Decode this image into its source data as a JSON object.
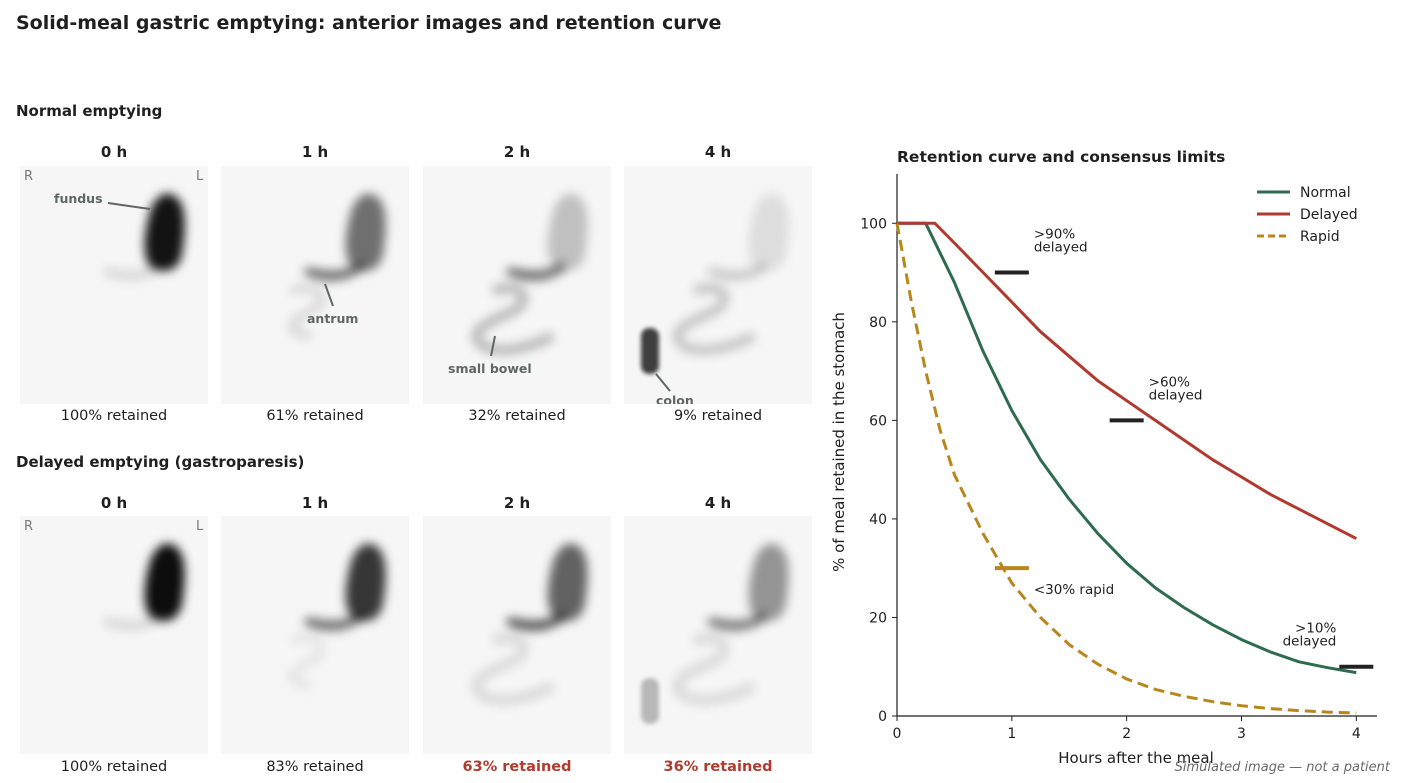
{
  "title": "Solid-meal gastric emptying: anterior images and retention curve",
  "footnote": "Simulated image — not a patient",
  "orientation": {
    "right": "R",
    "left": "L"
  },
  "rows": [
    {
      "title": "Normal emptying",
      "panels": [
        {
          "label": "0 h",
          "caption": "100% retained",
          "highlight": false,
          "retained": 100
        },
        {
          "label": "1 h",
          "caption": "61% retained",
          "highlight": false,
          "retained": 61
        },
        {
          "label": "2 h",
          "caption": "32% retained",
          "highlight": false,
          "retained": 32
        },
        {
          "label": "4 h",
          "caption": "9% retained",
          "highlight": false,
          "retained": 9
        }
      ],
      "annotations": [
        "fundus",
        "antrum",
        "small bowel",
        "colon"
      ]
    },
    {
      "title": "Delayed emptying (gastroparesis)",
      "panels": [
        {
          "label": "0 h",
          "caption": "100% retained",
          "highlight": false,
          "retained": 100
        },
        {
          "label": "1 h",
          "caption": "83% retained",
          "highlight": false,
          "retained": 83
        },
        {
          "label": "2 h",
          "caption": "63% retained",
          "highlight": true,
          "retained": 63
        },
        {
          "label": "4 h",
          "caption": "36% retained",
          "highlight": true,
          "retained": 36
        }
      ]
    }
  ],
  "chart_data": {
    "type": "line",
    "title": "Retention curve and consensus limits",
    "xlabel": "Hours after the meal",
    "ylabel": "% of meal retained in the stomach",
    "xlim": [
      0,
      4.18
    ],
    "ylim": [
      0,
      110
    ],
    "xticks": [
      0,
      1,
      2,
      3,
      4
    ],
    "yticks": [
      0,
      20,
      40,
      60,
      80,
      100
    ],
    "legend_position": "top-right",
    "series": [
      {
        "name": "Normal",
        "color": "#2e6b4f",
        "dash": false,
        "x": [
          0,
          0.25,
          0.5,
          0.75,
          1,
          1.25,
          1.5,
          1.75,
          2,
          2.25,
          2.5,
          2.75,
          3,
          3.25,
          3.5,
          3.75,
          4
        ],
        "y": [
          100,
          100,
          88,
          74,
          62,
          52,
          44,
          37,
          31,
          26,
          22,
          18.5,
          15.5,
          13,
          11,
          9.8,
          8.8
        ]
      },
      {
        "name": "Delayed",
        "color": "#b03a2e",
        "dash": false,
        "x": [
          0,
          0.33,
          0.5,
          0.75,
          1,
          1.25,
          1.5,
          1.75,
          2,
          2.25,
          2.5,
          2.75,
          3,
          3.25,
          3.5,
          3.75,
          4
        ],
        "y": [
          100,
          100,
          96,
          90,
          84,
          78,
          73,
          68,
          64,
          60,
          56,
          52,
          48.5,
          45,
          42,
          39,
          36
        ]
      },
      {
        "name": "Rapid",
        "color": "#b8861b",
        "dash": true,
        "x": [
          0,
          0.125,
          0.25,
          0.375,
          0.5,
          0.75,
          1,
          1.25,
          1.5,
          1.75,
          2,
          2.25,
          2.5,
          2.75,
          3,
          3.25,
          3.5,
          3.75,
          4
        ],
        "y": [
          100,
          84,
          70,
          58,
          49,
          37,
          27,
          20,
          14.5,
          10.5,
          7.5,
          5.4,
          4,
          2.9,
          2.1,
          1.5,
          1.1,
          0.8,
          0.6
        ]
      }
    ],
    "limits": [
      {
        "x": 1,
        "y": 90,
        "label": ">90%\ndelayed",
        "color": "#222222"
      },
      {
        "x": 2,
        "y": 60,
        "label": ">60%\ndelayed",
        "color": "#222222"
      },
      {
        "x": 4,
        "y": 10,
        "label": ">10%\ndelayed",
        "color": "#222222"
      },
      {
        "x": 1,
        "y": 30,
        "label": "<30% rapid",
        "color": "#b8861b"
      }
    ]
  }
}
